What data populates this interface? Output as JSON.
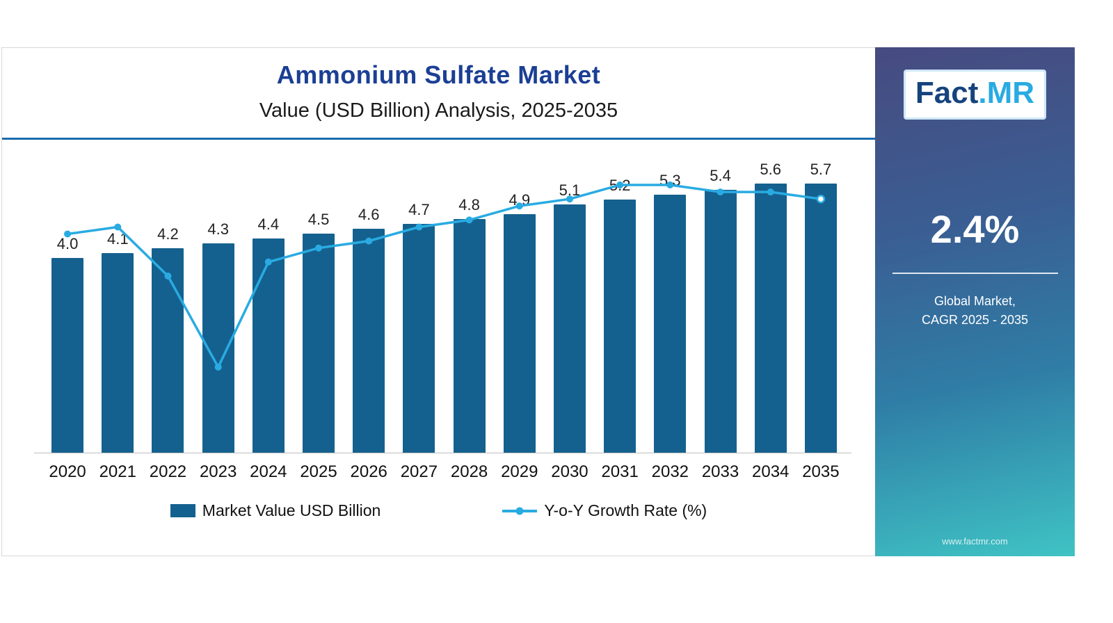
{
  "header": {
    "title": "Ammonium Sulfate Market",
    "subtitle": "Value (USD Billion) Analysis, 2025-2035"
  },
  "chart_data": {
    "type": "bar",
    "categories": [
      "2020",
      "2021",
      "2022",
      "2023",
      "2024",
      "2025",
      "2026",
      "2027",
      "2028",
      "2029",
      "2030",
      "2031",
      "2032",
      "2033",
      "2034",
      "2035"
    ],
    "series": [
      {
        "name": "Market Value USD Billion",
        "type": "bar",
        "values": [
          4.0,
          4.1,
          4.2,
          4.3,
          4.4,
          4.5,
          4.6,
          4.7,
          4.8,
          4.9,
          5.1,
          5.2,
          5.3,
          5.4,
          5.6,
          5.7
        ]
      },
      {
        "name": "Y-o-Y Growth Rate (%)",
        "type": "line",
        "values": [
          2.5,
          2.6,
          1.9,
          0.6,
          2.1,
          2.3,
          2.4,
          2.6,
          2.7,
          2.9,
          3.0,
          3.2,
          3.2,
          3.1,
          3.1,
          3.0
        ]
      }
    ],
    "bar_labels": [
      "4.0",
      "4.1",
      "4.2",
      "4.3",
      "4.4",
      "4.5",
      "4.6",
      "4.7",
      "4.8",
      "4.9",
      "5.1",
      "5.2",
      "5.3",
      "5.4",
      "5.6",
      "5.7"
    ],
    "title": "Ammonium Sulfate Market",
    "subtitle": "Value (USD Billion) Analysis, 2025-2035",
    "xlabel": "",
    "ylabel": "",
    "ylim": [
      0,
      6
    ],
    "grid": false,
    "legend_position": "bottom",
    "bar_color": "#14618f",
    "line_color": "#29abe2"
  },
  "legend": {
    "bar_label": "Market Value USD Billion",
    "line_label": "Y-o-Y Growth Rate (%)"
  },
  "sidebar": {
    "logo_part1": "Fact",
    "logo_part2": ".MR",
    "stat_value": "2.4%",
    "stat_caption_line1": "Global Market,",
    "stat_caption_line2": "CAGR 2025 - 2035",
    "website": "www.factmr.com"
  },
  "colors": {
    "title_blue": "#1b3f94",
    "divider_blue": "#1b6cb0",
    "bar_blue": "#14618f",
    "line_blue": "#29abe2",
    "sidebar_gradient_top": "#474b80",
    "sidebar_gradient_bottom": "#3fc3c4"
  }
}
